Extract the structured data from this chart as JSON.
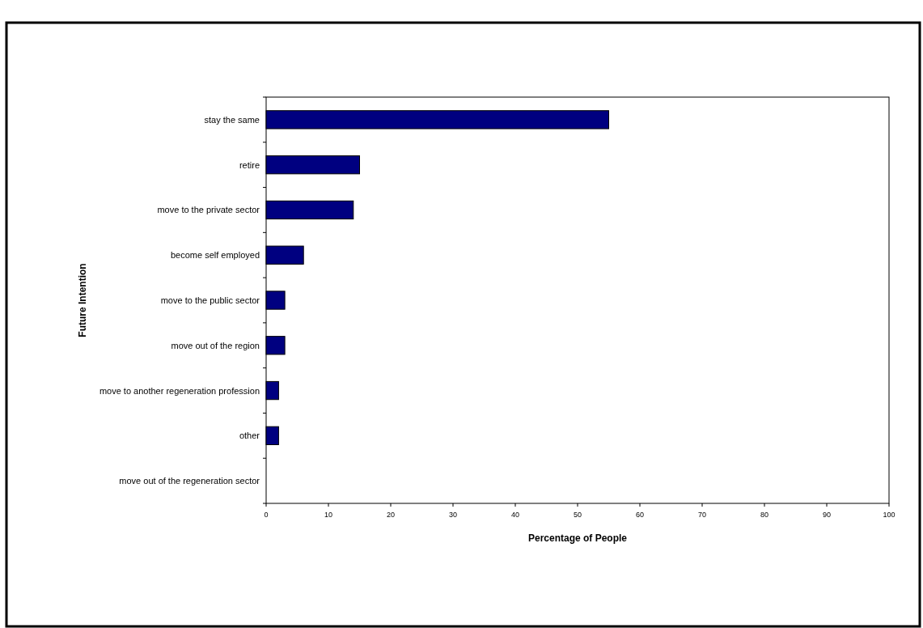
{
  "chart_data": {
    "type": "bar",
    "orientation": "horizontal",
    "xlabel": "Percentage of People",
    "ylabel": "Future Intention",
    "categories": [
      "stay the same",
      "retire",
      "move to the private sector",
      "become self employed",
      "move to the public sector",
      "move out of the region",
      "move to another regeneration profession",
      "other",
      "move out of the regeneration sector"
    ],
    "values": [
      55,
      15,
      14,
      6,
      3,
      3,
      2,
      2,
      0
    ],
    "color": "#000080",
    "xlim": [
      0,
      100
    ],
    "xticks": [
      0,
      10,
      20,
      30,
      40,
      50,
      60,
      70,
      80,
      90,
      100
    ],
    "grid": false
  }
}
